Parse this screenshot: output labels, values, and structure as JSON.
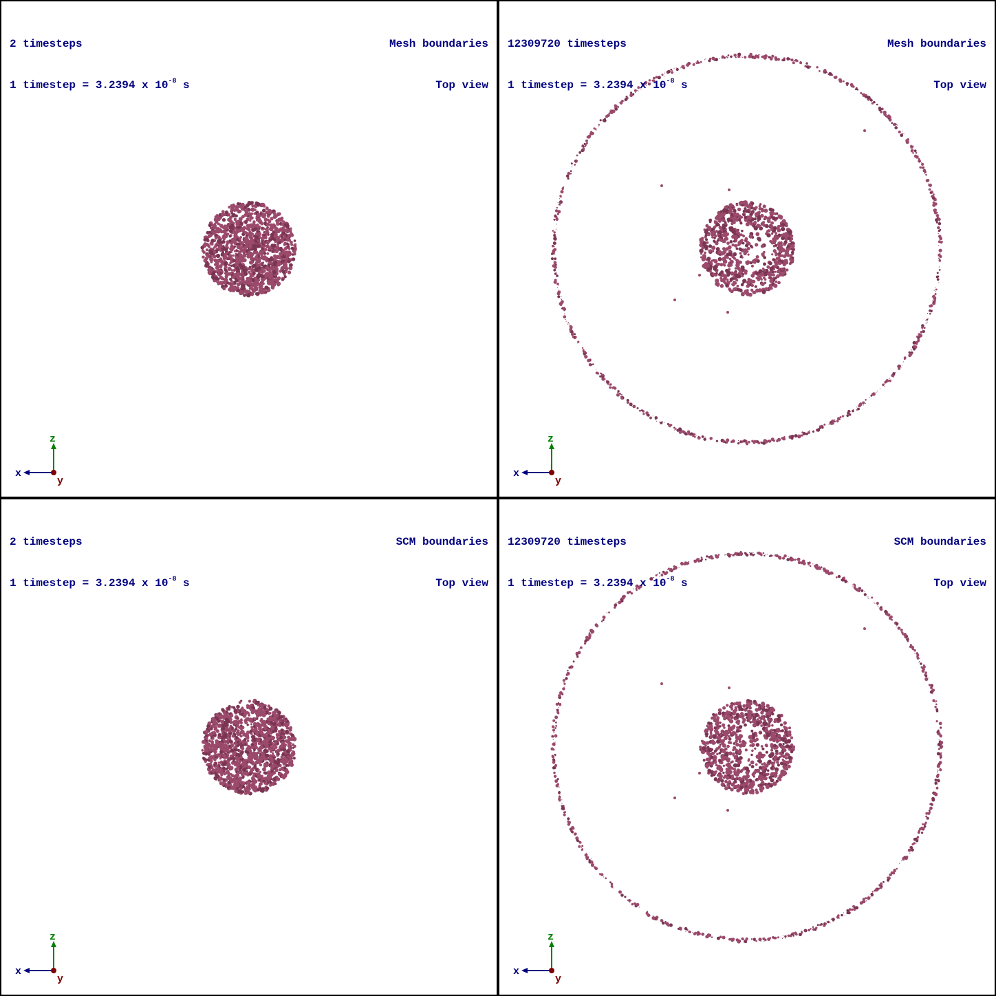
{
  "panels": [
    {
      "id": "top-left",
      "timesteps_label": "2 timesteps",
      "timestep_prefix": "1 timestep = 3.2394 x 10",
      "timestep_exp": "-8",
      "timestep_suffix": " s",
      "boundary_label": "Mesh boundaries",
      "view_label": "Top view",
      "has_ring": false
    },
    {
      "id": "top-right",
      "timesteps_label": "12309720 timesteps",
      "timestep_prefix": "1 timestep = 3.2394 x 10",
      "timestep_exp": "-8",
      "timestep_suffix": " s",
      "boundary_label": "Mesh boundaries",
      "view_label": "Top view",
      "has_ring": true
    },
    {
      "id": "bottom-left",
      "timesteps_label": "2 timesteps",
      "timestep_prefix": "1 timestep = 3.2394 x 10",
      "timestep_exp": "-8",
      "timestep_suffix": " s",
      "boundary_label": "SCM boundaries",
      "view_label": "Top view",
      "has_ring": false
    },
    {
      "id": "bottom-right",
      "timesteps_label": "12309720 timesteps",
      "timestep_prefix": "1 timestep = 3.2394 x 10",
      "timestep_exp": "-8",
      "timestep_suffix": " s",
      "boundary_label": "SCM boundaries",
      "view_label": "Top view",
      "has_ring": true
    }
  ],
  "axes": {
    "x": "x",
    "y": "y",
    "z": "z"
  },
  "colors": {
    "particle": "#9b4a6c",
    "particle_dark": "#7a3553",
    "text": "#00007f",
    "axis_x": "#00007f",
    "axis_y": "#7f0000",
    "axis_z": "#007f00",
    "border": "#000000"
  }
}
